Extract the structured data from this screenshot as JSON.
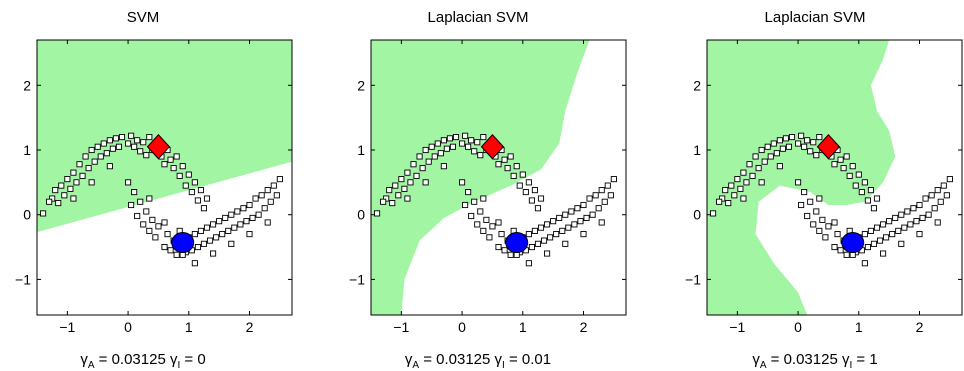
{
  "colors": {
    "positive_region": "#a2f5a2",
    "negative_region": "#ffffff",
    "positive_marker": "#ff0000",
    "negative_marker": "#0000ff",
    "unlabeled_marker": "#ffffff"
  },
  "chart_data": [
    {
      "type": "scatter",
      "title": "SVM",
      "xlabel": {
        "g1": "γ",
        "s1": "A",
        "v1": " = 0.03125  ",
        "g2": "γ",
        "s2": "I",
        "v2": " = 0"
      },
      "xlim": [
        -1.5,
        2.7
      ],
      "ylim": [
        -1.55,
        2.7
      ],
      "xticks": [
        -1,
        0,
        1,
        2
      ],
      "yticks": [
        -1,
        0,
        1,
        2
      ],
      "xtick_labels": [
        "−1",
        "0",
        "1",
        "2"
      ],
      "ytick_labels": [
        "−1",
        "0",
        "1",
        "2"
      ],
      "gamma_A": 0.03125,
      "gamma_I": 0,
      "labeled_positive": [
        0.5,
        1.05
      ],
      "labeled_negative": [
        0.9,
        -0.43
      ],
      "decision_boundary": [
        [
          -1.5,
          -0.27
        ],
        [
          2.7,
          0.82
        ]
      ]
    },
    {
      "type": "scatter",
      "title": "Laplacian SVM",
      "xlabel": {
        "g1": "γ",
        "s1": "A",
        "v1": " = 0.03125  ",
        "g2": "γ",
        "s2": "I",
        "v2": " = 0.01"
      },
      "xlim": [
        -1.5,
        2.7
      ],
      "ylim": [
        -1.55,
        2.7
      ],
      "xticks": [
        -1,
        0,
        1,
        2
      ],
      "yticks": [
        -1,
        0,
        1,
        2
      ],
      "xtick_labels": [
        "−1",
        "0",
        "1",
        "2"
      ],
      "ytick_labels": [
        "−1",
        "0",
        "1",
        "2"
      ],
      "gamma_A": 0.03125,
      "gamma_I": 0.01,
      "labeled_positive": [
        0.5,
        1.05
      ],
      "labeled_negative": [
        0.9,
        -0.43
      ],
      "decision_boundary": [
        [
          -1.0,
          -1.55
        ],
        [
          -0.95,
          -1.0
        ],
        [
          -0.7,
          -0.4
        ],
        [
          -0.3,
          -0.05
        ],
        [
          0.2,
          0.2
        ],
        [
          0.8,
          0.45
        ],
        [
          1.3,
          0.7
        ],
        [
          1.6,
          1.1
        ],
        [
          1.7,
          1.6
        ],
        [
          1.9,
          2.2
        ],
        [
          2.1,
          2.7
        ]
      ]
    },
    {
      "type": "scatter",
      "title": "Laplacian SVM",
      "xlabel": {
        "g1": "γ",
        "s1": "A",
        "v1": " = 0.03125  ",
        "g2": "γ",
        "s2": "I",
        "v2": " = 1"
      },
      "xlim": [
        -1.5,
        2.7
      ],
      "ylim": [
        -1.55,
        2.7
      ],
      "xticks": [
        -1,
        0,
        1,
        2
      ],
      "yticks": [
        -1,
        0,
        1,
        2
      ],
      "xtick_labels": [
        "−1",
        "0",
        "1",
        "2"
      ],
      "ytick_labels": [
        "−1",
        "0",
        "1",
        "2"
      ],
      "gamma_A": 0.03125,
      "gamma_I": 1,
      "labeled_positive": [
        0.5,
        1.05
      ],
      "labeled_negative": [
        0.9,
        -0.43
      ],
      "decision_boundary": [
        [
          0.15,
          -1.55
        ],
        [
          0.0,
          -1.2
        ],
        [
          -0.4,
          -0.75
        ],
        [
          -0.7,
          -0.3
        ],
        [
          -0.65,
          0.2
        ],
        [
          -0.3,
          0.45
        ],
        [
          0.2,
          0.35
        ],
        [
          0.5,
          0.15
        ],
        [
          0.8,
          0.15
        ],
        [
          1.1,
          0.2
        ],
        [
          1.4,
          0.5
        ],
        [
          1.6,
          0.9
        ],
        [
          1.5,
          1.3
        ],
        [
          1.3,
          1.6
        ],
        [
          1.2,
          2.0
        ],
        [
          1.4,
          2.4
        ],
        [
          1.5,
          2.7
        ]
      ]
    }
  ],
  "unlabeled_points": [
    [
      -1.4,
      0.02
    ],
    [
      -1.25,
      0.25
    ],
    [
      -1.2,
      0.38
    ],
    [
      -1.15,
      0.18
    ],
    [
      -1.1,
      0.45
    ],
    [
      -1.05,
      0.3
    ],
    [
      -1.0,
      0.55
    ],
    [
      -0.95,
      0.4
    ],
    [
      -0.9,
      0.65
    ],
    [
      -0.85,
      0.5
    ],
    [
      -0.8,
      0.78
    ],
    [
      -0.75,
      0.6
    ],
    [
      -0.7,
      0.9
    ],
    [
      -0.65,
      0.72
    ],
    [
      -0.6,
      1.0
    ],
    [
      -0.55,
      0.82
    ],
    [
      -0.5,
      1.05
    ],
    [
      -0.45,
      0.9
    ],
    [
      -0.4,
      1.1
    ],
    [
      -0.35,
      0.95
    ],
    [
      -0.3,
      1.15
    ],
    [
      -0.25,
      1.02
    ],
    [
      -0.2,
      1.18
    ],
    [
      -0.15,
      1.05
    ],
    [
      -0.1,
      1.2
    ],
    [
      0.0,
      1.1
    ],
    [
      0.05,
      1.22
    ],
    [
      0.1,
      1.05
    ],
    [
      0.15,
      1.15
    ],
    [
      0.2,
      0.98
    ],
    [
      0.25,
      1.12
    ],
    [
      0.3,
      0.92
    ],
    [
      0.35,
      1.2
    ],
    [
      0.4,
      1.0
    ],
    [
      0.55,
      0.9
    ],
    [
      0.6,
      0.78
    ],
    [
      0.65,
      1.0
    ],
    [
      0.7,
      0.85
    ],
    [
      0.75,
      0.72
    ],
    [
      0.8,
      0.9
    ],
    [
      0.85,
      0.6
    ],
    [
      0.9,
      0.75
    ],
    [
      0.95,
      0.45
    ],
    [
      1.0,
      0.62
    ],
    [
      1.05,
      0.35
    ],
    [
      1.1,
      0.5
    ],
    [
      1.15,
      0.22
    ],
    [
      1.2,
      0.38
    ],
    [
      1.25,
      0.1
    ],
    [
      1.3,
      0.25
    ],
    [
      -1.3,
      0.2
    ],
    [
      -0.9,
      0.25
    ],
    [
      -0.6,
      0.5
    ],
    [
      -0.3,
      0.75
    ],
    [
      0.0,
      0.5
    ],
    [
      0.05,
      0.15
    ],
    [
      0.1,
      0.35
    ],
    [
      0.15,
      -0.02
    ],
    [
      0.2,
      0.2
    ],
    [
      0.25,
      -0.15
    ],
    [
      0.3,
      0.05
    ],
    [
      0.35,
      -0.25
    ],
    [
      0.4,
      -0.08
    ],
    [
      0.45,
      -0.35
    ],
    [
      0.5,
      -0.18
    ],
    [
      0.6,
      -0.5
    ],
    [
      0.65,
      -0.3
    ],
    [
      0.7,
      -0.55
    ],
    [
      0.75,
      -0.4
    ],
    [
      0.8,
      -0.62
    ],
    [
      0.85,
      -0.25
    ],
    [
      0.95,
      -0.58
    ],
    [
      1.0,
      -0.35
    ],
    [
      1.05,
      -0.55
    ],
    [
      1.1,
      -0.3
    ],
    [
      1.15,
      -0.5
    ],
    [
      1.2,
      -0.25
    ],
    [
      1.25,
      -0.45
    ],
    [
      1.3,
      -0.2
    ],
    [
      1.35,
      -0.4
    ],
    [
      1.4,
      -0.15
    ],
    [
      1.45,
      -0.35
    ],
    [
      1.5,
      -0.1
    ],
    [
      1.55,
      -0.3
    ],
    [
      1.6,
      -0.05
    ],
    [
      1.65,
      -0.25
    ],
    [
      1.7,
      0.0
    ],
    [
      1.75,
      -0.2
    ],
    [
      1.8,
      0.05
    ],
    [
      1.85,
      -0.15
    ],
    [
      1.9,
      0.1
    ],
    [
      1.95,
      -0.1
    ],
    [
      2.0,
      0.15
    ],
    [
      2.05,
      -0.05
    ],
    [
      2.1,
      0.25
    ],
    [
      2.15,
      0.0
    ],
    [
      2.2,
      0.3
    ],
    [
      2.25,
      0.1
    ],
    [
      2.3,
      0.38
    ],
    [
      2.35,
      0.2
    ],
    [
      2.4,
      0.45
    ],
    [
      2.45,
      0.3
    ],
    [
      2.5,
      0.55
    ],
    [
      2.3,
      -0.12
    ],
    [
      2.0,
      -0.3
    ],
    [
      1.7,
      -0.45
    ],
    [
      1.4,
      -0.6
    ],
    [
      1.1,
      -0.75
    ],
    [
      0.6,
      -0.12
    ],
    [
      0.35,
      0.25
    ],
    [
      0.9,
      -0.62
    ]
  ]
}
